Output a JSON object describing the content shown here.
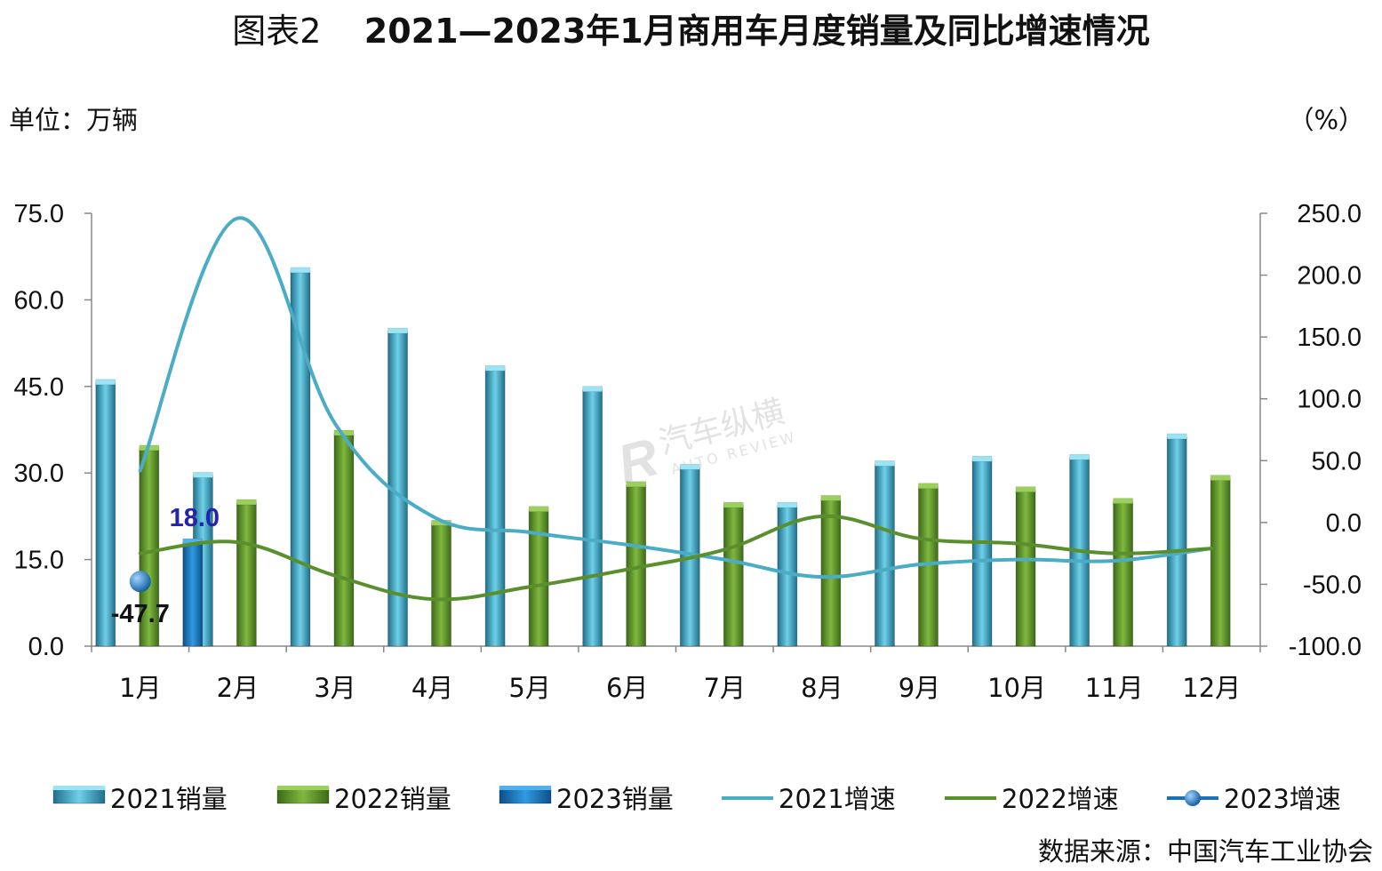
{
  "title": {
    "label": "图表2",
    "main": "2021—2023年1月商用车月度销量及同比增速情况"
  },
  "unit_left": "单位：万辆",
  "unit_right": "（%）",
  "source": "数据来源：中国汽车工业协会",
  "watermark": {
    "cn": "汽车纵横",
    "en": "AUTO REVIEW"
  },
  "colors": {
    "bar_2021": "#4bb6d0",
    "bar_2022": "#5f962b",
    "bar_2023": "#1f7fc6",
    "line_2021": "#4bacc6",
    "line_2022": "#5a8f2e",
    "line_2023": "#1f6fb4",
    "label_2023_sales": "#2323b0",
    "label_2023_growth": "#111111"
  },
  "chart_data": {
    "type": "bar",
    "categories": [
      "1月",
      "2月",
      "3月",
      "4月",
      "5月",
      "6月",
      "7月",
      "8月",
      "9月",
      "10月",
      "11月",
      "12月"
    ],
    "series": [
      {
        "name": "2021销量",
        "type": "bar",
        "axis": "left",
        "values": [
          45.6,
          29.5,
          65.0,
          54.5,
          48.0,
          44.4,
          30.9,
          24.3,
          31.5,
          32.3,
          32.6,
          36.2
        ]
      },
      {
        "name": "2022销量",
        "type": "bar",
        "axis": "left",
        "values": [
          34.2,
          24.8,
          36.8,
          21.2,
          23.6,
          27.9,
          24.3,
          25.5,
          27.6,
          27.0,
          25.0,
          29.0
        ]
      },
      {
        "name": "2023销量",
        "type": "bar",
        "axis": "left",
        "values": [
          18.0,
          null,
          null,
          null,
          null,
          null,
          null,
          null,
          null,
          null,
          null,
          null
        ]
      },
      {
        "name": "2021增速",
        "type": "line",
        "axis": "right",
        "values": [
          42,
          246,
          80,
          5,
          -8,
          -18,
          -30,
          -44,
          -34,
          -30,
          -31,
          -21
        ]
      },
      {
        "name": "2022增速",
        "type": "line",
        "axis": "right",
        "values": [
          -25,
          -16,
          -43,
          -62,
          -52,
          -38,
          -22,
          5,
          -13,
          -17,
          -25,
          -21
        ]
      },
      {
        "name": "2023增速",
        "type": "line",
        "axis": "right",
        "values": [
          -47.7,
          null,
          null,
          null,
          null,
          null,
          null,
          null,
          null,
          null,
          null,
          null
        ]
      }
    ],
    "data_labels": {
      "sales_2023": "18.0",
      "growth_2023": "-47.7"
    },
    "y_left": {
      "min": 0,
      "max": 75,
      "ticks": [
        "0.0",
        "15.0",
        "30.0",
        "45.0",
        "60.0",
        "75.0"
      ]
    },
    "y_right": {
      "min": -100,
      "max": 250,
      "ticks": [
        "-100.0",
        "-50.0",
        "0.0",
        "50.0",
        "100.0",
        "150.0",
        "200.0",
        "250.0"
      ]
    },
    "grid": false,
    "legend_position": "bottom"
  }
}
